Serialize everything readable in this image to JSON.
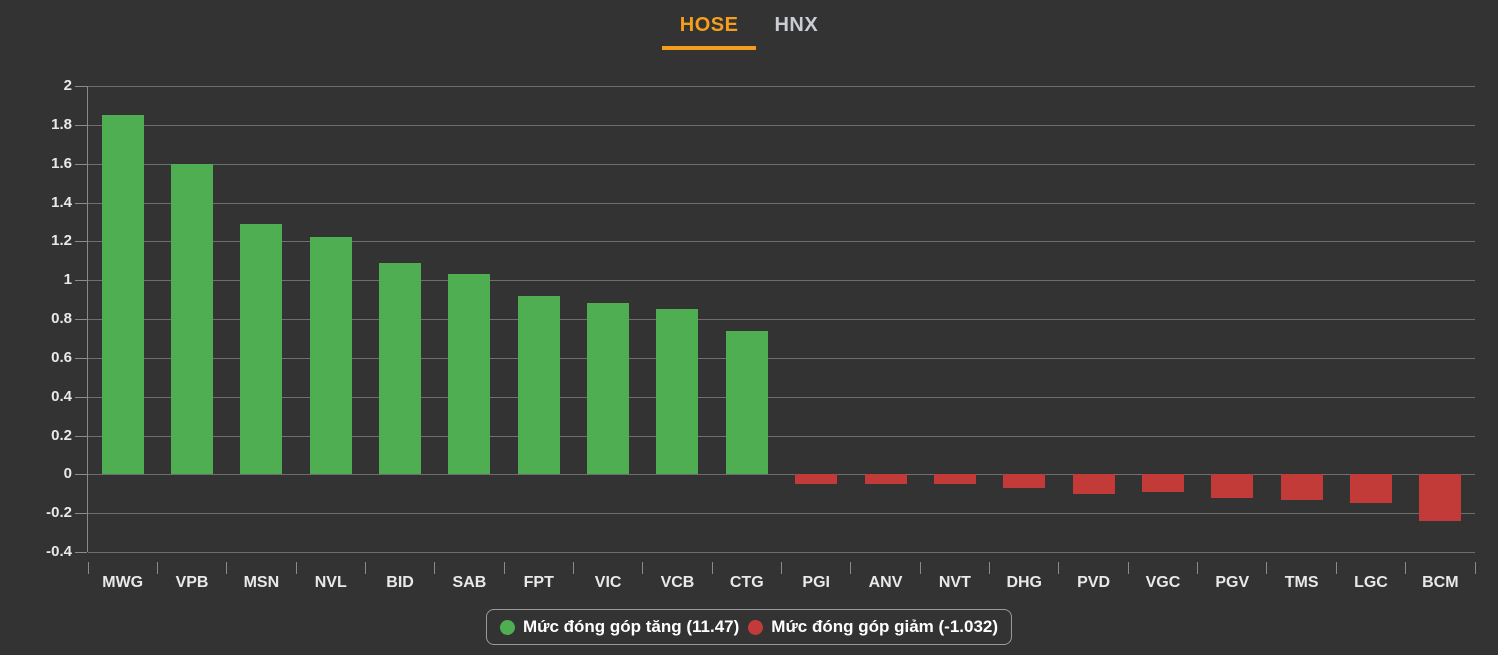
{
  "tabs": {
    "items": [
      {
        "label": "HOSE",
        "active": true
      },
      {
        "label": "HNX",
        "active": false
      }
    ]
  },
  "legend": {
    "up_label": "Mức đóng góp tăng (11.47)",
    "down_label": "Mức đóng góp giảm (-1.032)"
  },
  "colors": {
    "background": "#333333",
    "tab_active": "#f59e1e",
    "tab_inactive": "#c9ced4",
    "positive": "#4fae52",
    "negative": "#c23b38",
    "gridline": "#6e6e6e",
    "axis_line": "#8a8a8a",
    "axis_text": "#e9e9e9",
    "legend_border": "#9a9a9a",
    "legend_text": "#ffffff"
  },
  "chart_data": {
    "type": "bar",
    "title": "",
    "xlabel": "",
    "ylabel": "",
    "categories": [
      "MWG",
      "VPB",
      "MSN",
      "NVL",
      "BID",
      "SAB",
      "FPT",
      "VIC",
      "VCB",
      "CTG",
      "PGI",
      "ANV",
      "NVT",
      "DHG",
      "PVD",
      "VGC",
      "PGV",
      "TMS",
      "LGC",
      "BCM"
    ],
    "values": [
      1.85,
      1.6,
      1.29,
      1.22,
      1.09,
      1.03,
      0.92,
      0.88,
      0.85,
      0.74,
      -0.05,
      -0.05,
      -0.05,
      -0.07,
      -0.1,
      -0.09,
      -0.12,
      -0.13,
      -0.15,
      -0.24
    ],
    "series": [
      {
        "name": "Mức đóng góp tăng",
        "total": 11.47,
        "color": "#4fae52"
      },
      {
        "name": "Mức đóng góp giảm",
        "total": -1.032,
        "color": "#c23b38"
      }
    ],
    "ylim": [
      -0.4,
      2
    ],
    "ytick_step": 0.2,
    "yticks": [
      "2",
      "1.8",
      "1.6",
      "1.4",
      "1.2",
      "1",
      "0.8",
      "0.6",
      "0.4",
      "0.2",
      "0",
      "-0.2",
      "-0.4"
    ],
    "grid": true,
    "legend_position": "bottom-center"
  }
}
